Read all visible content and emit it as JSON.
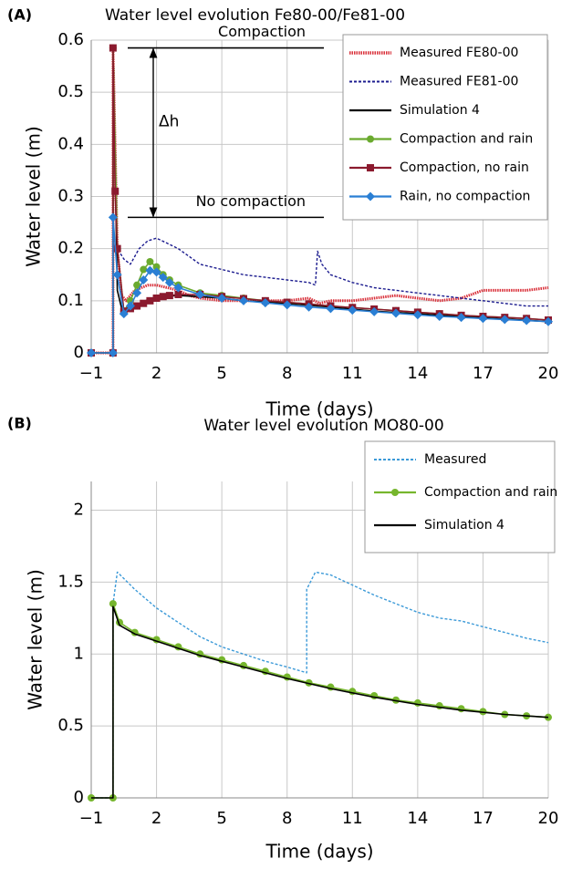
{
  "chart_data": [
    {
      "type": "line",
      "label": "(A)",
      "title": "Water level evolution Fe80-00/Fe81-00",
      "x_label": "Time (days)",
      "y_label": "Water level (m)",
      "xlim": [
        -1,
        20
      ],
      "ylim": [
        0,
        0.6
      ],
      "xticks": [
        {
          "value": -1,
          "label": "−1"
        },
        2,
        5,
        8,
        11,
        14,
        17,
        20
      ],
      "yticks": [
        0,
        0.1,
        0.2,
        0.3,
        0.4,
        0.5,
        0.6
      ],
      "grid": true,
      "legend": "upper right",
      "annotations": [
        {
          "text": "Compaction",
          "y": 0.585
        },
        {
          "text": "No compaction",
          "y": 0.26
        },
        {
          "text": "Δh"
        }
      ],
      "series": [
        {
          "name": "Measured FE80-00",
          "color": "#d9303a",
          "dash": "dotted",
          "marker": "none",
          "x": [
            -1,
            0,
            0,
            0.2,
            0.4,
            0.6,
            0.8,
            1,
            1.3,
            1.6,
            2,
            2.5,
            3,
            3.5,
            4,
            5,
            6,
            7,
            8,
            9,
            9.5,
            10,
            11,
            12,
            13,
            14,
            15,
            16,
            17,
            18,
            19,
            20
          ],
          "values": [
            0,
            0,
            0.585,
            0.2,
            0.11,
            0.1,
            0.11,
            0.12,
            0.125,
            0.13,
            0.13,
            0.125,
            0.12,
            0.11,
            0.105,
            0.1,
            0.1,
            0.1,
            0.1,
            0.105,
            0.095,
            0.1,
            0.1,
            0.105,
            0.11,
            0.105,
            0.1,
            0.105,
            0.12,
            0.12,
            0.12,
            0.125
          ]
        },
        {
          "name": "Measured FE81-00",
          "color": "#1c1c8f",
          "dash": "dashed",
          "marker": "none",
          "x": [
            -1,
            0,
            0,
            0.2,
            0.5,
            0.8,
            1.2,
            1.6,
            2,
            2.5,
            3,
            4,
            5,
            6,
            7,
            8,
            9,
            9.3,
            9.4,
            9.6,
            10,
            11,
            12,
            13,
            14,
            15,
            16,
            17,
            18,
            19,
            20
          ],
          "values": [
            0,
            0,
            0.585,
            0.2,
            0.18,
            0.17,
            0.2,
            0.215,
            0.22,
            0.21,
            0.2,
            0.17,
            0.16,
            0.15,
            0.145,
            0.14,
            0.135,
            0.13,
            0.195,
            0.17,
            0.15,
            0.135,
            0.125,
            0.12,
            0.115,
            0.11,
            0.105,
            0.1,
            0.095,
            0.09,
            0.09
          ]
        },
        {
          "name": "Simulation 4",
          "color": "#000000",
          "dash": "solid",
          "marker": "none",
          "x": [
            -1,
            0,
            0,
            0.2,
            0.4,
            0.6,
            1,
            1.5,
            2,
            3,
            4,
            5,
            6,
            8,
            10,
            12,
            14,
            16,
            18,
            20
          ],
          "values": [
            0,
            0,
            0.585,
            0.12,
            0.085,
            0.08,
            0.09,
            0.1,
            0.108,
            0.11,
            0.108,
            0.105,
            0.1,
            0.095,
            0.088,
            0.08,
            0.075,
            0.07,
            0.065,
            0.06
          ]
        },
        {
          "name": "Compaction and rain",
          "color": "#6aaa2e",
          "dash": "solid",
          "marker": "circle",
          "x": [
            -1,
            0,
            0,
            0.2,
            0.5,
            0.8,
            1.1,
            1.4,
            1.7,
            2,
            2.3,
            2.6,
            3,
            4,
            5,
            6,
            7,
            8,
            9,
            10,
            11,
            12,
            13,
            14,
            15,
            16,
            17,
            18,
            19,
            20
          ],
          "values": [
            0,
            0,
            0.585,
            0.2,
            0.08,
            0.1,
            0.13,
            0.16,
            0.175,
            0.165,
            0.15,
            0.14,
            0.13,
            0.115,
            0.11,
            0.105,
            0.1,
            0.097,
            0.094,
            0.09,
            0.087,
            0.084,
            0.081,
            0.078,
            0.075,
            0.072,
            0.07,
            0.068,
            0.066,
            0.063
          ]
        },
        {
          "name": "Compaction, no rain",
          "color": "#8b1a2e",
          "dash": "solid",
          "marker": "square",
          "x": [
            -1,
            0,
            0,
            0.1,
            0.2,
            0.5,
            0.8,
            1.1,
            1.4,
            1.7,
            2,
            2.3,
            2.6,
            3,
            4,
            5,
            6,
            7,
            8,
            9,
            10,
            11,
            12,
            13,
            14,
            15,
            16,
            17,
            18,
            19,
            20
          ],
          "values": [
            0,
            0,
            0.585,
            0.31,
            0.2,
            0.08,
            0.085,
            0.09,
            0.095,
            0.1,
            0.105,
            0.108,
            0.11,
            0.112,
            0.112,
            0.108,
            0.104,
            0.1,
            0.097,
            0.094,
            0.09,
            0.087,
            0.084,
            0.081,
            0.078,
            0.075,
            0.072,
            0.07,
            0.068,
            0.066,
            0.063
          ]
        },
        {
          "name": "Rain, no compaction",
          "color": "#2a7fd4",
          "dash": "solid",
          "marker": "diamond",
          "x": [
            -1,
            0,
            0,
            0.2,
            0.5,
            0.8,
            1.1,
            1.4,
            1.7,
            2,
            2.3,
            2.6,
            3,
            4,
            5,
            6,
            7,
            8,
            9,
            10,
            11,
            12,
            13,
            14,
            15,
            16,
            17,
            18,
            19,
            20
          ],
          "values": [
            0,
            0,
            0.26,
            0.15,
            0.075,
            0.09,
            0.115,
            0.14,
            0.158,
            0.155,
            0.145,
            0.135,
            0.125,
            0.112,
            0.105,
            0.1,
            0.096,
            0.092,
            0.088,
            0.085,
            0.082,
            0.079,
            0.076,
            0.073,
            0.07,
            0.068,
            0.066,
            0.064,
            0.062,
            0.06
          ]
        }
      ]
    },
    {
      "type": "line",
      "label": "(B)",
      "title": "Water level evolution MO80-00",
      "x_label": "Time (days)",
      "y_label": "Water level (m)",
      "xlim": [
        -1,
        20
      ],
      "ylim": [
        0,
        2.2
      ],
      "xticks": [
        {
          "value": -1,
          "label": "−1"
        },
        2,
        5,
        8,
        11,
        14,
        17,
        20
      ],
      "yticks": [
        0,
        0.5,
        1,
        1.5,
        2
      ],
      "grid": true,
      "legend": "upper right",
      "series": [
        {
          "name": "Measured",
          "color": "#3c9ad8",
          "dash": "dashed",
          "marker": "none",
          "x": [
            -1,
            0,
            0,
            0.2,
            1,
            2,
            3,
            4,
            5,
            6,
            7,
            8,
            8.9,
            8.9,
            9.3,
            10,
            11,
            12,
            13,
            14,
            15,
            16,
            17,
            18,
            19,
            20
          ],
          "values": [
            0,
            0,
            1.35,
            1.57,
            1.45,
            1.32,
            1.22,
            1.12,
            1.05,
            1.0,
            0.95,
            0.91,
            0.87,
            1.45,
            1.57,
            1.55,
            1.48,
            1.41,
            1.35,
            1.29,
            1.25,
            1.23,
            1.19,
            1.15,
            1.11,
            1.08
          ]
        },
        {
          "name": "Compaction and rain",
          "color": "#76b62d",
          "dash": "solid",
          "marker": "circle",
          "x": [
            -1,
            0,
            0,
            0.3,
            1,
            2,
            3,
            4,
            5,
            6,
            7,
            8,
            9,
            10,
            11,
            12,
            13,
            14,
            15,
            16,
            17,
            18,
            19,
            20
          ],
          "values": [
            0,
            0,
            1.35,
            1.22,
            1.15,
            1.1,
            1.05,
            1.0,
            0.96,
            0.92,
            0.88,
            0.84,
            0.8,
            0.77,
            0.74,
            0.71,
            0.68,
            0.66,
            0.64,
            0.62,
            0.6,
            0.58,
            0.57,
            0.56
          ]
        },
        {
          "name": "Simulation 4",
          "color": "#000000",
          "dash": "solid",
          "marker": "none",
          "x": [
            -1,
            0,
            0,
            0.3,
            1,
            2,
            3,
            4,
            5,
            6,
            8,
            10,
            12,
            14,
            16,
            18,
            20
          ],
          "values": [
            0,
            0,
            1.33,
            1.2,
            1.14,
            1.09,
            1.04,
            0.99,
            0.95,
            0.91,
            0.83,
            0.76,
            0.7,
            0.65,
            0.61,
            0.58,
            0.56
          ]
        }
      ]
    }
  ]
}
